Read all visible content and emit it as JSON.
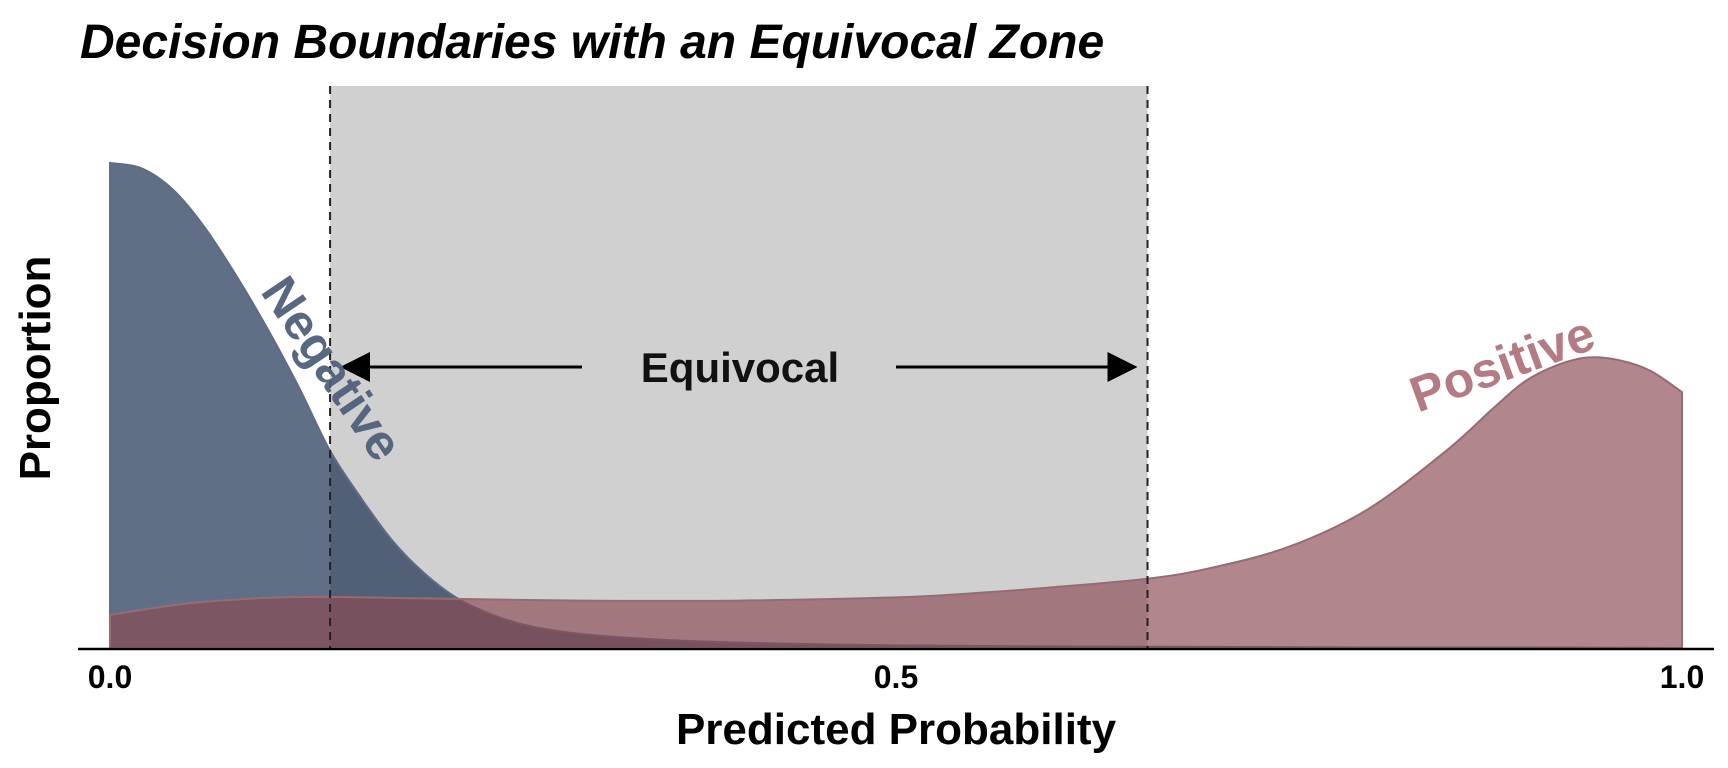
{
  "chart_data": {
    "type": "area",
    "title": "Decision Boundaries with an Equivocal Zone",
    "xlabel": "Predicted Probability",
    "ylabel": "Proportion",
    "xlim": [
      0,
      1
    ],
    "ylim": [
      0,
      1
    ],
    "x_ticks": [
      {
        "value": 0.0,
        "label": "0.0"
      },
      {
        "value": 0.5,
        "label": "0.5"
      },
      {
        "value": 1.0,
        "label": "1.0"
      }
    ],
    "grid": false,
    "legend": "none",
    "equivocal_zone": {
      "start": 0.14,
      "end": 0.66,
      "label": "Equivocal"
    },
    "series": [
      {
        "name": "Negative",
        "color": "#14284b",
        "x": [
          0.0,
          0.02,
          0.04,
          0.06,
          0.08,
          0.1,
          0.12,
          0.14,
          0.16,
          0.18,
          0.2,
          0.22,
          0.24,
          0.26,
          0.28,
          0.3,
          0.33,
          0.36,
          0.4,
          0.45,
          0.5,
          0.6,
          0.7,
          0.8,
          0.9,
          1.0
        ],
        "y": [
          0.91,
          0.9,
          0.86,
          0.79,
          0.7,
          0.6,
          0.49,
          0.37,
          0.28,
          0.2,
          0.14,
          0.095,
          0.066,
          0.046,
          0.034,
          0.026,
          0.019,
          0.014,
          0.01,
          0.007,
          0.005,
          0.003,
          0.002,
          0.001,
          0.001,
          0.0
        ]
      },
      {
        "name": "Positive",
        "color": "#8b4a53",
        "x": [
          0.0,
          0.05,
          0.1,
          0.14,
          0.2,
          0.3,
          0.4,
          0.5,
          0.55,
          0.6,
          0.66,
          0.7,
          0.75,
          0.8,
          0.85,
          0.88,
          0.9,
          0.92,
          0.94,
          0.96,
          0.98,
          1.0
        ],
        "y": [
          0.062,
          0.084,
          0.094,
          0.096,
          0.093,
          0.089,
          0.089,
          0.095,
          0.103,
          0.114,
          0.13,
          0.15,
          0.19,
          0.26,
          0.37,
          0.45,
          0.5,
          0.53,
          0.545,
          0.54,
          0.52,
          0.48
        ]
      }
    ]
  }
}
